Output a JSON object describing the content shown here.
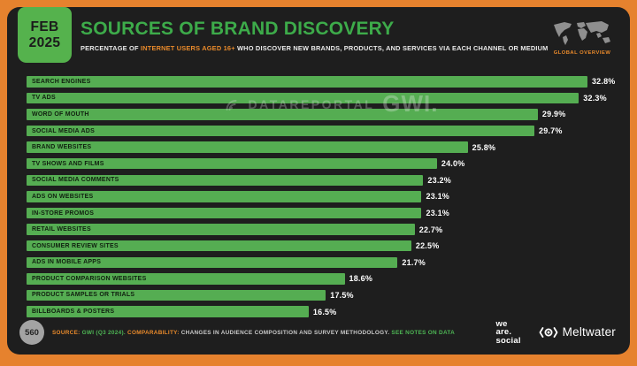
{
  "badge": {
    "month": "FEB",
    "year": "2025"
  },
  "header": {
    "title": "SOURCES OF BRAND DISCOVERY",
    "subtitle_prefix": "PERCENTAGE OF ",
    "subtitle_highlight": "INTERNET USERS AGED 16+",
    "subtitle_suffix": " WHO DISCOVER NEW BRANDS, PRODUCTS, AND SERVICES VIA EACH CHANNEL OR MEDIUM",
    "overview_label": "GLOBAL OVERVIEW"
  },
  "watermark": {
    "brand": "DATAREPORTAL",
    "partner": "GWI."
  },
  "chart_data": {
    "type": "bar",
    "orientation": "horizontal",
    "title": "Sources of Brand Discovery (Feb 2025)",
    "unit": "%",
    "xlim": [
      0,
      33
    ],
    "grid": false,
    "categories": [
      "SEARCH ENGINES",
      "TV ADS",
      "WORD OF MOUTH",
      "SOCIAL MEDIA ADS",
      "BRAND WEBSITES",
      "TV SHOWS AND FILMS",
      "SOCIAL MEDIA COMMENTS",
      "ADS ON WEBSITES",
      "IN-STORE PROMOS",
      "RETAIL WEBSITES",
      "CONSUMER REVIEW SITES",
      "ADS IN MOBILE APPS",
      "PRODUCT COMPARISON WEBSITES",
      "PRODUCT SAMPLES OR TRIALS",
      "BILLBOARDS & POSTERS"
    ],
    "values": [
      32.8,
      32.3,
      29.9,
      29.7,
      25.8,
      24.0,
      23.2,
      23.1,
      23.1,
      22.7,
      22.5,
      21.7,
      18.6,
      17.5,
      16.5
    ],
    "bar_color": "#55ad52",
    "bar_label_color": "#10200f",
    "value_label_color": "#ffffff"
  },
  "footer": {
    "slide_number": "560",
    "source_label": "SOURCE:",
    "source_value": " GWI (Q3 2024). ",
    "comparability_label": "COMPARABILITY:",
    "comparability_text": " CHANGES IN AUDIENCE COMPOSITION AND SURVEY METHODOLOGY. ",
    "notes_link": "SEE NOTES ON DATA",
    "logo_we_are_social": {
      "line1": "we",
      "line2": "are.",
      "line3": "social"
    },
    "logo_meltwater": "Meltwater"
  },
  "colors": {
    "frame_orange": "#e6822e",
    "panel_bg": "#1e1e1e",
    "green": "#55ad52",
    "title_green": "#3dab4a",
    "accent_orange": "#e98a2b",
    "text_light": "#e9e9e9"
  }
}
